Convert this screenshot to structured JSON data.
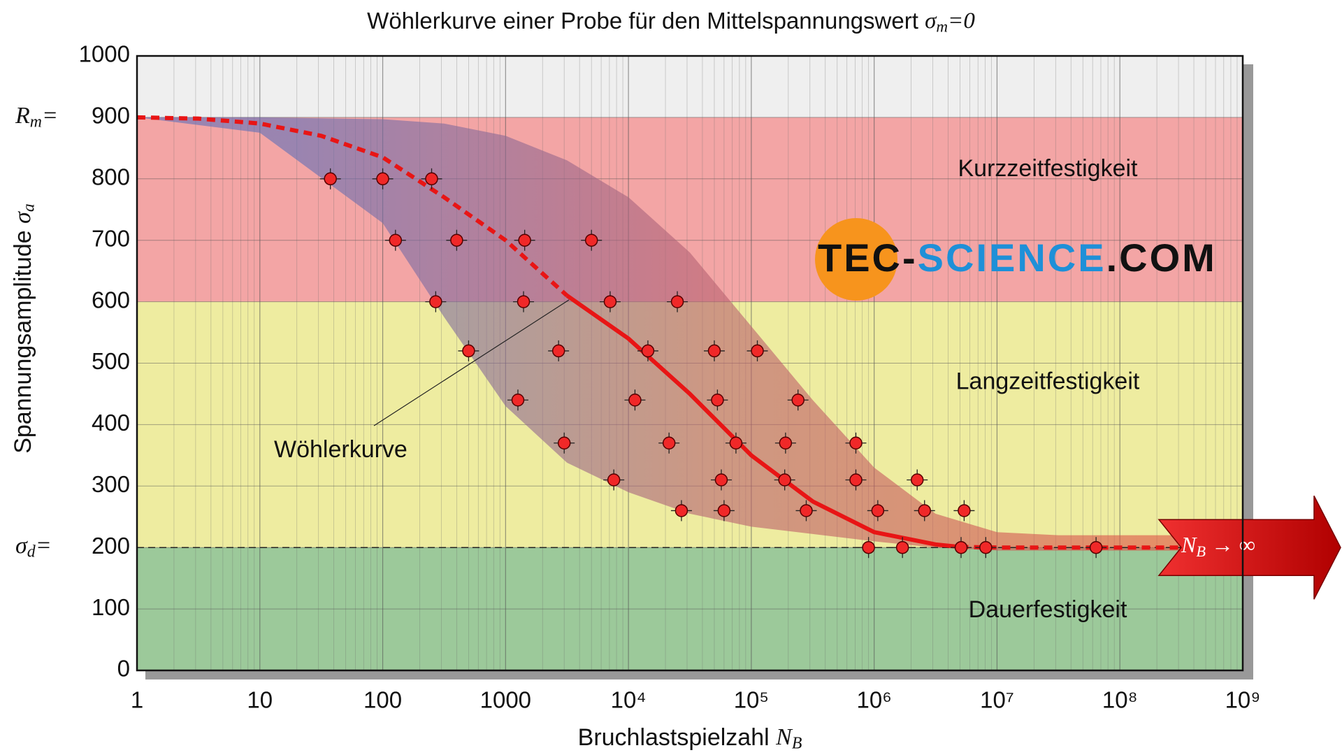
{
  "chart_data": {
    "type": "scatter",
    "title": {
      "text": "Wöhlerkurve einer Probe für den Mittelspannungswert ",
      "symbol": "σ",
      "sub": "m",
      "suffix": "=0"
    },
    "xlabel": {
      "text": "Bruchlastspielzahl ",
      "symbol": "N",
      "sub": "B"
    },
    "ylabel": {
      "text": "Spannungsamplitude ",
      "symbol": "σ",
      "sub": "a"
    },
    "log_x": true,
    "grid": true,
    "xlim": [
      1,
      1000000000
    ],
    "xticks": [
      1,
      10,
      100,
      1000,
      {
        "value": 10000,
        "label": "10⁴"
      },
      {
        "value": 100000,
        "label": "10⁵"
      },
      {
        "value": 1000000,
        "label": "10⁶"
      },
      {
        "value": 10000000,
        "label": "10⁷"
      },
      {
        "value": 100000000,
        "label": "10⁸"
      },
      {
        "value": 1000000000,
        "label": "10⁹"
      }
    ],
    "ylim": [
      0,
      1000
    ],
    "yticks": [
      0,
      100,
      200,
      300,
      400,
      500,
      600,
      700,
      800,
      900,
      1000
    ],
    "regions": [
      {
        "from": 900,
        "to": 1000,
        "color": "#efefef"
      },
      {
        "label": "Kurzzeitfestigkeit",
        "from": 600,
        "to": 900,
        "color": "#f3a5a5"
      },
      {
        "label": "Langzeitfestigkeit",
        "from": 200,
        "to": 600,
        "color": "#eeeca0"
      },
      {
        "label": "Dauerfestigkeit",
        "from": 0,
        "to": 200,
        "color": "#9cc99a"
      }
    ],
    "level_labels": [
      {
        "symbol": "R",
        "sub": "m",
        "suffix": "=",
        "value": 900
      },
      {
        "symbol": "σ",
        "sub": "d",
        "suffix": "=",
        "value": 200
      }
    ],
    "scatter_band": {
      "upper": {
        "x": [
          1,
          10,
          100,
          316,
          1000,
          3162,
          10000,
          31623,
          100000,
          316228,
          1000000,
          3162278,
          10000000,
          31622777,
          100000000,
          316227766
        ],
        "values": [
          900,
          900,
          897,
          890,
          870,
          830,
          770,
          680,
          560,
          440,
          330,
          255,
          225,
          220,
          220,
          220
        ]
      },
      "lower": {
        "x": [
          1,
          10,
          100,
          316,
          1000,
          3162,
          10000,
          31623,
          100000,
          316228,
          1000000,
          3162278,
          10000000,
          100000000,
          316227766
        ],
        "values": [
          900,
          875,
          728,
          575,
          430,
          338,
          290,
          255,
          234,
          222,
          210,
          200,
          195,
          195,
          195
        ]
      }
    },
    "curve": {
      "label": "Wöhlerkurve",
      "color": "#e81515",
      "pieces": [
        {
          "dashed": true,
          "x": [
            1,
            3.16,
            10,
            31.6,
            100,
            316,
            1000,
            3162
          ],
          "values": [
            900,
            898,
            890,
            870,
            835,
            770,
            700,
            610
          ]
        },
        {
          "dashed": false,
          "x": [
            3162,
            10000,
            31623,
            100000,
            316228,
            1000000,
            3162278,
            5000000
          ],
          "values": [
            610,
            540,
            450,
            350,
            275,
            225,
            205,
            201
          ]
        },
        {
          "dashed": true,
          "x": [
            5000000,
            10000000,
            100000000,
            316227766
          ],
          "values": [
            201,
            200,
            200,
            200
          ]
        }
      ]
    },
    "points": {
      "color": "#f02828",
      "x": [
        37.5,
        100,
        250,
        127,
        400,
        1430,
        5000,
        270,
        1400,
        7100,
        25000,
        500,
        2700,
        14400,
        50000,
        112000,
        1260,
        11300,
        53000,
        240000,
        3000,
        21400,
        75000,
        190000,
        710000,
        7600,
        57000,
        187000,
        710000,
        2240000,
        27000,
        60000,
        280000,
        1070000,
        2570000,
        5400000,
        900000,
        1700000,
        5100000,
        8100000,
        64000000
      ],
      "values": [
        800,
        800,
        800,
        700,
        700,
        700,
        700,
        600,
        600,
        600,
        600,
        520,
        520,
        520,
        520,
        520,
        440,
        440,
        440,
        440,
        370,
        370,
        370,
        370,
        370,
        310,
        310,
        310,
        310,
        310,
        260,
        260,
        260,
        260,
        260,
        260,
        200,
        200,
        200,
        200,
        200
      ]
    },
    "arrow_label": {
      "symbol": "N",
      "sub": "B",
      "suffix": " → ∞"
    },
    "logo": {
      "part1": "TEC-",
      "part2": "SCIENCE",
      "part3": ".COM"
    }
  }
}
